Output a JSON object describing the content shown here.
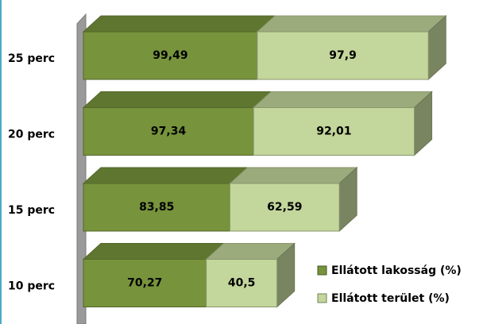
{
  "chart_data": {
    "type": "stacked-bar-3d-horizontal",
    "categories": [
      "25 perc",
      "20 perc",
      "15 perc",
      "10 perc"
    ],
    "series": [
      {
        "name": "Ellátott lakosság (%)",
        "color": "#77933c",
        "values": [
          99.49,
          97.34,
          83.85,
          70.27
        ],
        "value_labels": [
          "99,49",
          "97,34",
          "83,85",
          "70,27"
        ]
      },
      {
        "name": "Ellátott terület (%)",
        "color": "#c3d69b",
        "values": [
          97.9,
          92.01,
          62.59,
          40.5
        ],
        "value_labels": [
          "97,9",
          "92,01",
          "62,59",
          "40,5"
        ]
      }
    ],
    "legend": "bottom-right"
  }
}
